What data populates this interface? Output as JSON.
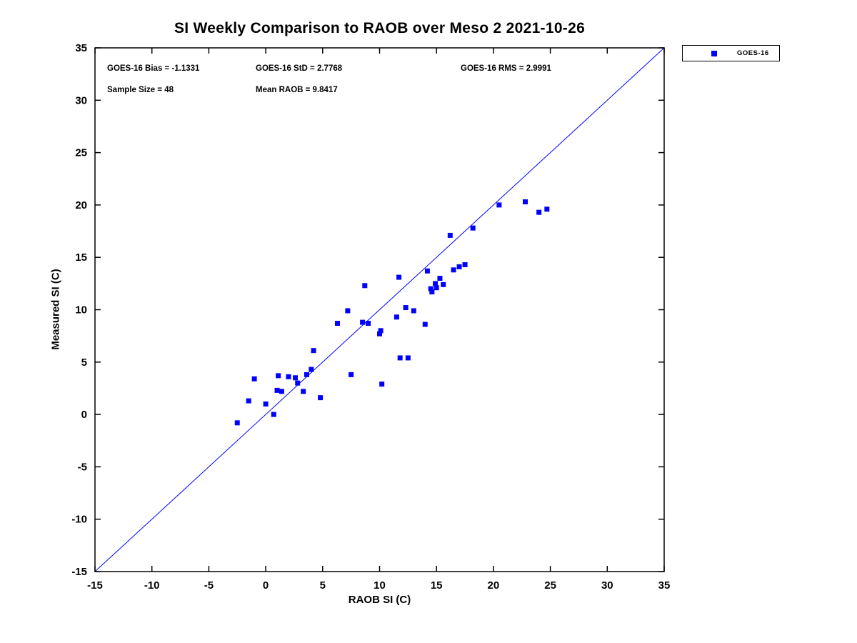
{
  "chart_data": {
    "type": "scatter",
    "title": "SI Weekly Comparison to RAOB over Meso 2 2021-10-26",
    "xlabel": "RAOB SI (C)",
    "ylabel": "Measured SI (C)",
    "xlim": [
      -15,
      35
    ],
    "ylim": [
      -15,
      35
    ],
    "xticks": [
      -15,
      -10,
      -5,
      0,
      5,
      10,
      15,
      20,
      25,
      30,
      35
    ],
    "yticks": [
      -15,
      -10,
      -5,
      0,
      5,
      10,
      15,
      20,
      25,
      30,
      35
    ],
    "grid": false,
    "axis_color": "#000000",
    "accent_color": "#0000ff",
    "stats": {
      "bias": "GOES-16 Bias = -1.1331",
      "std": "GOES-16 StD = 2.7768",
      "rms": "GOES-16 RMS = 2.9991",
      "sample_size": "Sample Size = 48",
      "mean_raob": "Mean RAOB = 9.8417"
    },
    "legend": {
      "position": "outside-top-right",
      "entries": [
        {
          "label": "GOES-16",
          "marker": "square-icon",
          "color": "#0000ff"
        }
      ]
    },
    "reference_line": {
      "x": [
        -15,
        35
      ],
      "y": [
        -15,
        35
      ],
      "color": "#0000ff",
      "width": 1
    },
    "series": [
      {
        "name": "GOES-16",
        "marker": "square",
        "marker_size": 7,
        "color": "#0000ff",
        "points": [
          [
            -2.5,
            -0.8
          ],
          [
            -1.5,
            1.3
          ],
          [
            -1.0,
            3.4
          ],
          [
            0.0,
            1.0
          ],
          [
            0.7,
            0.0
          ],
          [
            1.0,
            2.3
          ],
          [
            1.4,
            2.2
          ],
          [
            1.1,
            3.7
          ],
          [
            2.0,
            3.6
          ],
          [
            2.6,
            3.5
          ],
          [
            2.8,
            3.0
          ],
          [
            3.3,
            2.2
          ],
          [
            3.6,
            3.8
          ],
          [
            4.0,
            4.3
          ],
          [
            4.2,
            6.1
          ],
          [
            4.8,
            1.6
          ],
          [
            6.3,
            8.7
          ],
          [
            7.2,
            9.9
          ],
          [
            7.5,
            3.8
          ],
          [
            8.5,
            8.8
          ],
          [
            8.7,
            12.3
          ],
          [
            9.0,
            8.7
          ],
          [
            10.0,
            7.7
          ],
          [
            10.1,
            8.0
          ],
          [
            10.2,
            2.9
          ],
          [
            11.5,
            9.3
          ],
          [
            11.7,
            13.1
          ],
          [
            11.8,
            5.4
          ],
          [
            12.3,
            10.2
          ],
          [
            12.5,
            5.4
          ],
          [
            13.0,
            9.9
          ],
          [
            14.0,
            8.6
          ],
          [
            14.2,
            13.7
          ],
          [
            14.5,
            12.0
          ],
          [
            14.6,
            11.7
          ],
          [
            14.9,
            12.5
          ],
          [
            15.0,
            12.1
          ],
          [
            15.3,
            13.0
          ],
          [
            15.6,
            12.4
          ],
          [
            16.2,
            17.1
          ],
          [
            16.5,
            13.8
          ],
          [
            17.0,
            14.1
          ],
          [
            17.5,
            14.3
          ],
          [
            18.2,
            17.8
          ],
          [
            20.5,
            20.0
          ],
          [
            22.8,
            20.3
          ],
          [
            24.0,
            19.3
          ],
          [
            24.7,
            19.6
          ]
        ]
      }
    ]
  }
}
